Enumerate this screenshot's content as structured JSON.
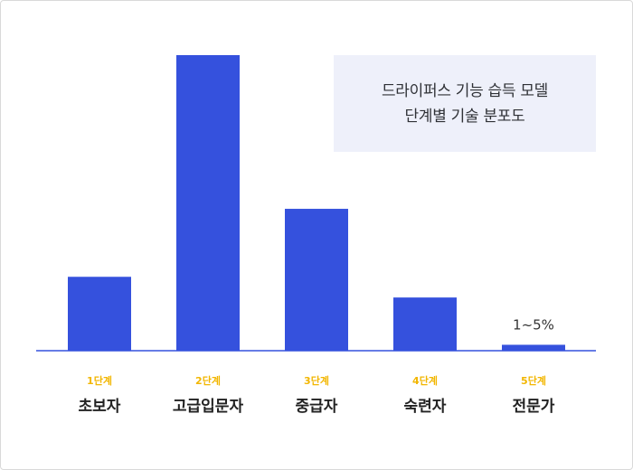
{
  "chart_data": {
    "type": "bar",
    "title_lines": [
      "드라이퍼스 기능 습득 모델",
      "단계별 기술 분포도"
    ],
    "stages": [
      "1단계",
      "2단계",
      "3단계",
      "4단계",
      "5단계"
    ],
    "categories": [
      "초보자",
      "고급입문자",
      "중급자",
      "숙련자",
      "전문가"
    ],
    "values": [
      25,
      100,
      48,
      18,
      2
    ],
    "data_labels": [
      "",
      "",
      "",
      "",
      "1~5%"
    ],
    "ylim": [
      0,
      100
    ],
    "xlabel": "",
    "ylabel": "",
    "grid": false,
    "legend": "none",
    "colors": {
      "bar": "#3551dd",
      "axis": "#3551dd",
      "stage_label": "#f2b600",
      "title_bg": "#eef0fa"
    }
  }
}
